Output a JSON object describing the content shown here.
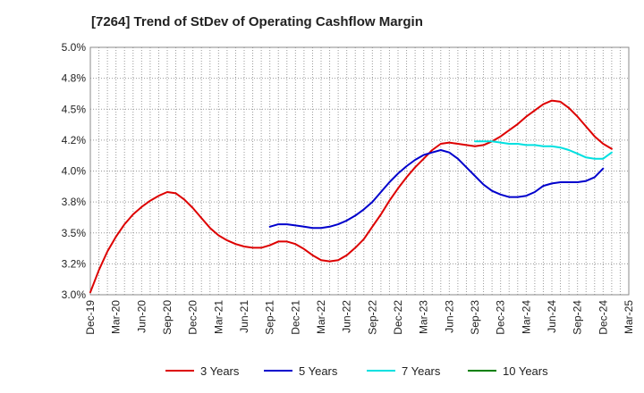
{
  "chart_data": {
    "type": "line",
    "title": "[7264]  Trend of StDev of Operating Cashflow Margin",
    "xlabel": "",
    "ylabel": "",
    "ylim": [
      3.0,
      5.0
    ],
    "y_ticks": [
      3.0,
      3.25,
      3.5,
      3.75,
      4.0,
      4.25,
      4.5,
      4.75,
      5.0
    ],
    "y_tick_labels": [
      "3.0%",
      "3.2%",
      "3.5%",
      "3.8%",
      "4.0%",
      "4.2%",
      "4.5%",
      "4.8%",
      "5.0%"
    ],
    "x_tick_labels": [
      "Dec-19",
      "Mar-20",
      "Jun-20",
      "Sep-20",
      "Dec-20",
      "Mar-21",
      "Jun-21",
      "Sep-21",
      "Dec-21",
      "Mar-22",
      "Jun-22",
      "Sep-22",
      "Dec-22",
      "Mar-23",
      "Jun-23",
      "Sep-23",
      "Dec-23",
      "Mar-24",
      "Jun-24",
      "Sep-24",
      "Dec-24",
      "Mar-25"
    ],
    "grid": true,
    "legend_position": "bottom",
    "series": [
      {
        "name": "3 Years",
        "color": "#dd0000",
        "points": [
          [
            0,
            3.02
          ],
          [
            1,
            3.2
          ],
          [
            2,
            3.35
          ],
          [
            3,
            3.47
          ],
          [
            4,
            3.57
          ],
          [
            5,
            3.65
          ],
          [
            6,
            3.71
          ],
          [
            7,
            3.76
          ],
          [
            8,
            3.8
          ],
          [
            9,
            3.83
          ],
          [
            10,
            3.82
          ],
          [
            11,
            3.77
          ],
          [
            12,
            3.7
          ],
          [
            13,
            3.62
          ],
          [
            14,
            3.54
          ],
          [
            15,
            3.48
          ],
          [
            16,
            3.44
          ],
          [
            17,
            3.41
          ],
          [
            18,
            3.39
          ],
          [
            19,
            3.38
          ],
          [
            20,
            3.38
          ],
          [
            21,
            3.4
          ],
          [
            22,
            3.43
          ],
          [
            23,
            3.43
          ],
          [
            24,
            3.41
          ],
          [
            25,
            3.37
          ],
          [
            26,
            3.32
          ],
          [
            27,
            3.28
          ],
          [
            28,
            3.27
          ],
          [
            29,
            3.28
          ],
          [
            30,
            3.32
          ],
          [
            31,
            3.38
          ],
          [
            32,
            3.45
          ],
          [
            33,
            3.55
          ],
          [
            34,
            3.65
          ],
          [
            35,
            3.76
          ],
          [
            36,
            3.86
          ],
          [
            37,
            3.95
          ],
          [
            38,
            4.03
          ],
          [
            39,
            4.1
          ],
          [
            40,
            4.17
          ],
          [
            41,
            4.22
          ],
          [
            42,
            4.23
          ],
          [
            43,
            4.22
          ],
          [
            44,
            4.21
          ],
          [
            45,
            4.2
          ],
          [
            46,
            4.21
          ],
          [
            47,
            4.24
          ],
          [
            48,
            4.28
          ],
          [
            49,
            4.33
          ],
          [
            50,
            4.38
          ],
          [
            51,
            4.44
          ],
          [
            52,
            4.49
          ],
          [
            53,
            4.54
          ],
          [
            54,
            4.57
          ],
          [
            55,
            4.56
          ],
          [
            56,
            4.51
          ],
          [
            57,
            4.44
          ],
          [
            58,
            4.36
          ],
          [
            59,
            4.28
          ],
          [
            60,
            4.22
          ],
          [
            61,
            4.18
          ]
        ]
      },
      {
        "name": "5 Years",
        "color": "#0000cc",
        "points": [
          [
            21,
            3.55
          ],
          [
            22,
            3.57
          ],
          [
            23,
            3.57
          ],
          [
            24,
            3.56
          ],
          [
            25,
            3.55
          ],
          [
            26,
            3.54
          ],
          [
            27,
            3.54
          ],
          [
            28,
            3.55
          ],
          [
            29,
            3.57
          ],
          [
            30,
            3.6
          ],
          [
            31,
            3.64
          ],
          [
            32,
            3.69
          ],
          [
            33,
            3.75
          ],
          [
            34,
            3.83
          ],
          [
            35,
            3.91
          ],
          [
            36,
            3.98
          ],
          [
            37,
            4.04
          ],
          [
            38,
            4.09
          ],
          [
            39,
            4.13
          ],
          [
            40,
            4.15
          ],
          [
            41,
            4.17
          ],
          [
            42,
            4.15
          ],
          [
            43,
            4.1
          ],
          [
            44,
            4.03
          ],
          [
            45,
            3.96
          ],
          [
            46,
            3.89
          ],
          [
            47,
            3.84
          ],
          [
            48,
            3.81
          ],
          [
            49,
            3.79
          ],
          [
            50,
            3.79
          ],
          [
            51,
            3.8
          ],
          [
            52,
            3.83
          ],
          [
            53,
            3.88
          ],
          [
            54,
            3.9
          ],
          [
            55,
            3.91
          ],
          [
            56,
            3.91
          ],
          [
            57,
            3.91
          ],
          [
            58,
            3.92
          ],
          [
            59,
            3.95
          ],
          [
            60,
            4.02
          ]
        ]
      },
      {
        "name": "7 Years",
        "color": "#00e0e0",
        "points": [
          [
            45,
            4.24
          ],
          [
            46,
            4.24
          ],
          [
            47,
            4.24
          ],
          [
            48,
            4.23
          ],
          [
            49,
            4.22
          ],
          [
            50,
            4.22
          ],
          [
            51,
            4.21
          ],
          [
            52,
            4.21
          ],
          [
            53,
            4.2
          ],
          [
            54,
            4.2
          ],
          [
            55,
            4.19
          ],
          [
            56,
            4.17
          ],
          [
            57,
            4.14
          ],
          [
            58,
            4.11
          ],
          [
            59,
            4.1
          ],
          [
            60,
            4.1
          ],
          [
            61,
            4.15
          ]
        ]
      },
      {
        "name": "10 Years",
        "color": "#008000",
        "points": []
      }
    ]
  }
}
